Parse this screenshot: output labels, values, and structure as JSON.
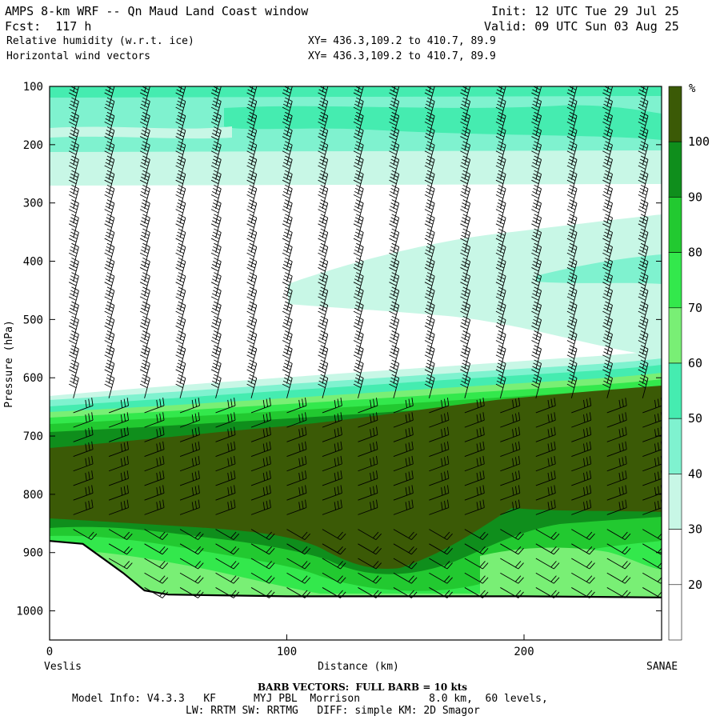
{
  "header": {
    "title": "AMPS 8-km WRF -- Qn Maud Land Coast window",
    "fcst": "Fcst:  117 h",
    "init": "Init: 12 UTC Tue 29 Jul 25",
    "valid": "Valid: 09 UTC Sun 03 Aug 25",
    "field1": "Relative humidity (w.r.t. ice)",
    "field2": "Horizontal wind vectors",
    "xy1": "XY= 436.3,109.2 to 410.7, 89.9",
    "xy2": "XY= 436.3,109.2 to 410.7, 89.9"
  },
  "chart_data": {
    "type": "heatmap",
    "title": "Relative humidity (w.r.t. ice)",
    "subtitle": "Horizontal wind vectors",
    "xlabel": "Distance (km)",
    "ylabel": "Pressure (hPa)",
    "xlim": [
      0,
      258
    ],
    "ylim": [
      1050,
      100
    ],
    "x_ticks": [
      0,
      100,
      200
    ],
    "y_ticks": [
      100,
      200,
      300,
      400,
      500,
      600,
      700,
      800,
      900,
      1000
    ],
    "left_end_label": "Veslis",
    "right_end_label": "SANAE",
    "colorbar": {
      "unit": "%",
      "levels": [
        20,
        30,
        40,
        50,
        60,
        70,
        80,
        90,
        100
      ],
      "colors": [
        "#ffffff",
        "#c8f7e6",
        "#7ff2cf",
        "#45ecb0",
        "#79ef75",
        "#33e84c",
        "#22c930",
        "#0f8e1c",
        "#3b5a06"
      ]
    },
    "regions": [
      {
        "level": "30-40",
        "desc": "upper band",
        "p_range": [
          100,
          240
        ]
      },
      {
        "level": "40-50",
        "desc": "embedded moist streak",
        "p_range": [
          110,
          215
        ]
      },
      {
        "level": "30-40",
        "desc": "mid plume",
        "p_range": [
          300,
          520
        ]
      },
      {
        "level": "90-100+",
        "desc": "low-level moist layer",
        "p_range": [
          600,
          900
        ]
      },
      {
        "level": "60-80",
        "desc": "near-surface",
        "p_range": [
          840,
          970
        ]
      }
    ],
    "terrain_surface": [
      {
        "x": 0,
        "p": 880
      },
      {
        "x": 14,
        "p": 885
      },
      {
        "x": 31,
        "p": 935
      },
      {
        "x": 40,
        "p": 965
      },
      {
        "x": 50,
        "p": 972
      },
      {
        "x": 100,
        "p": 975
      },
      {
        "x": 200,
        "p": 975
      },
      {
        "x": 258,
        "p": 977
      }
    ],
    "barb_columns_x": [
      10,
      25,
      40,
      55,
      70,
      85,
      100,
      115,
      130,
      145,
      160,
      175,
      190,
      205,
      220,
      235,
      250
    ]
  },
  "footer": {
    "barb_note": "BARB VECTORS:  FULL BARB = 10 kts",
    "model_info": "Model Info: V4.3.3   KF      MYJ PBL  Morrison           8.0 km,  60 levels,",
    "model_info2": "LW: RRTM SW: RRTMG   DIFF: simple KM: 2D Smagor"
  }
}
